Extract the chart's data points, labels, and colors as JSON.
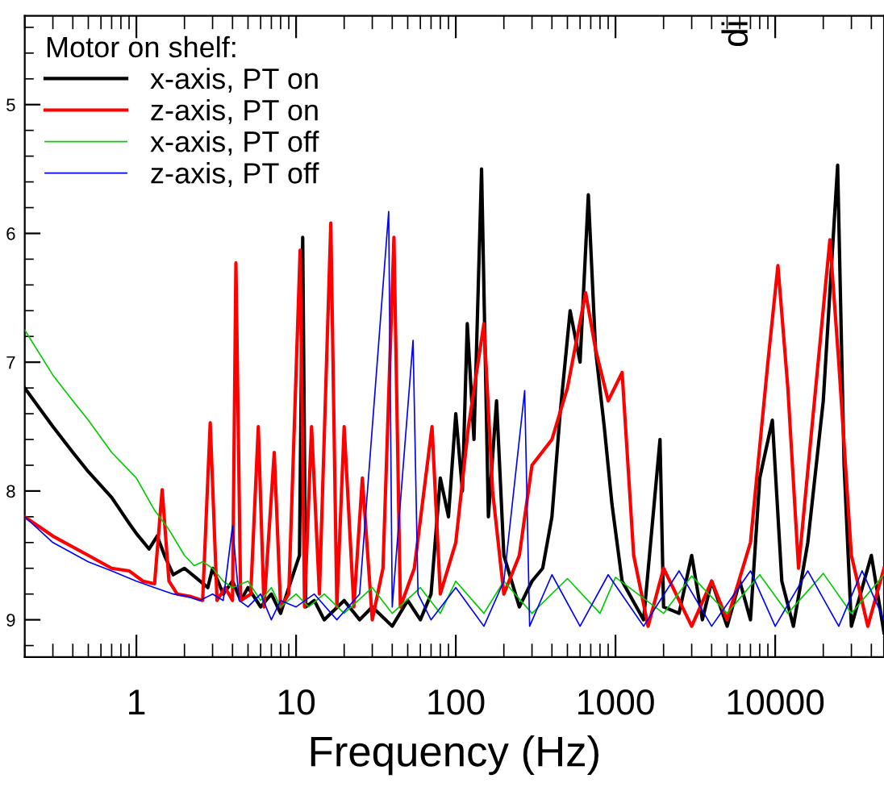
{
  "chart_data": {
    "type": "line",
    "xlabel": "Frequency (Hz)",
    "legend_title": "Motor on shelf:",
    "legend": "top left",
    "log": "x",
    "grid": false,
    "xlim": [
      0.2,
      48000
    ],
    "xticks": [
      1,
      10,
      100,
      1000,
      10000
    ],
    "ylim": [
      9.29,
      4.31
    ],
    "yticks": [
      5,
      6,
      7,
      8,
      9
    ],
    "annotations": [
      "di"
    ],
    "series": [
      {
        "name": "x-axis, PT on",
        "color": "#000000",
        "x": [
          0.2,
          0.3,
          0.4,
          0.5,
          0.7,
          0.9,
          1.0,
          1.2,
          1.35,
          1.5,
          1.7,
          2.0,
          2.4,
          2.8,
          3.0,
          3.5,
          4,
          4.5,
          5,
          6,
          7,
          8,
          9,
          10.5,
          11,
          11.5,
          13,
          15,
          20,
          25,
          30,
          40,
          50,
          60,
          70,
          80,
          90,
          100,
          110,
          118,
          130,
          145,
          160,
          180,
          200,
          250,
          300,
          350,
          400,
          450,
          520,
          600,
          676,
          750,
          850,
          950,
          1100,
          1500,
          1900,
          2000,
          2500,
          3000,
          3500,
          4000,
          5000,
          6000,
          7000,
          8000,
          9600,
          11000,
          13000,
          16000,
          20000,
          24600,
          27000,
          30000,
          40000,
          48000
        ],
        "values": [
          7.2,
          7.5,
          7.7,
          7.85,
          8.05,
          8.25,
          8.33,
          8.45,
          8.35,
          8.5,
          8.65,
          8.6,
          8.68,
          8.75,
          8.6,
          8.8,
          8.7,
          8.85,
          8.75,
          8.9,
          8.8,
          8.95,
          8.75,
          8.5,
          6.03,
          8.9,
          8.85,
          9.0,
          8.85,
          9.0,
          8.9,
          9.05,
          8.85,
          9.0,
          8.8,
          7.9,
          8.2,
          7.4,
          8.0,
          6.7,
          7.6,
          5.5,
          8.2,
          7.3,
          8.5,
          8.9,
          8.7,
          8.6,
          8.2,
          7.4,
          6.6,
          7.0,
          5.7,
          6.9,
          7.5,
          8.1,
          8.7,
          9.0,
          7.6,
          8.9,
          8.95,
          8.5,
          9.0,
          8.7,
          9.05,
          8.7,
          9.0,
          7.9,
          7.45,
          8.7,
          9.05,
          8.4,
          7.3,
          5.47,
          7.8,
          9.05,
          8.5,
          9.1
        ]
      },
      {
        "name": "z-axis, PT on",
        "color": "#ff0000",
        "x": [
          0.2,
          0.3,
          0.5,
          0.7,
          0.9,
          1.1,
          1.3,
          1.45,
          1.6,
          1.8,
          2.2,
          2.6,
          2.9,
          3.2,
          3.6,
          4.0,
          4.2,
          4.5,
          5.2,
          5.8,
          6.3,
          7.3,
          8,
          9,
          10.6,
          11.3,
          12.5,
          14,
          16.5,
          18,
          20,
          23,
          26,
          30,
          35,
          41,
          45,
          55,
          71,
          80,
          100,
          120,
          150,
          170,
          200,
          250,
          300,
          400,
          500,
          650,
          750,
          900,
          1100,
          1300,
          1600,
          2000,
          3000,
          4000,
          5000,
          7000,
          9000,
          10400,
          12000,
          14000,
          17000,
          22000,
          25000,
          30000,
          38000,
          48000
        ],
        "values": [
          8.2,
          8.35,
          8.5,
          8.6,
          8.62,
          8.7,
          8.72,
          7.99,
          8.7,
          8.8,
          8.82,
          8.85,
          7.47,
          8.85,
          8.75,
          8.85,
          6.23,
          8.85,
          8.8,
          7.5,
          8.9,
          7.7,
          8.9,
          8.8,
          6.13,
          8.9,
          7.5,
          8.8,
          5.92,
          8.9,
          7.5,
          8.9,
          7.9,
          9.0,
          8.6,
          6.03,
          8.9,
          8.6,
          7.5,
          8.8,
          8.4,
          7.5,
          6.7,
          8.0,
          8.8,
          8.5,
          7.8,
          7.6,
          7.2,
          6.46,
          6.9,
          7.3,
          7.08,
          8.5,
          9.05,
          8.6,
          9.05,
          8.7,
          9.0,
          8.4,
          7.0,
          6.25,
          7.2,
          8.6,
          7.5,
          6.05,
          7.0,
          8.5,
          9.05,
          8.6
        ]
      },
      {
        "name": "x-axis, PT off",
        "color": "#00cc00",
        "x": [
          0.2,
          0.3,
          0.4,
          0.5,
          0.7,
          1.0,
          1.3,
          1.6,
          2.0,
          2.3,
          2.6,
          3.0,
          3.5,
          4,
          5,
          6,
          7,
          8,
          10,
          12,
          15,
          20,
          30,
          40,
          60,
          80,
          100,
          150,
          200,
          300,
          500,
          800,
          1000,
          2000,
          3000,
          5000,
          8000,
          12000,
          20000,
          30000,
          48000
        ],
        "values": [
          6.75,
          7.1,
          7.3,
          7.45,
          7.7,
          7.9,
          8.15,
          8.3,
          8.5,
          8.58,
          8.55,
          8.6,
          8.7,
          8.75,
          8.7,
          8.85,
          8.75,
          8.9,
          8.8,
          8.9,
          8.8,
          8.95,
          8.75,
          8.95,
          8.75,
          8.95,
          8.7,
          8.95,
          8.7,
          8.95,
          8.68,
          8.95,
          8.67,
          8.95,
          8.66,
          8.95,
          8.65,
          8.95,
          8.64,
          8.95,
          8.65
        ]
      },
      {
        "name": "z-axis, PT off",
        "color": "#0000ff",
        "x": [
          0.2,
          0.3,
          0.5,
          0.7,
          1.0,
          1.3,
          1.7,
          2.1,
          2.5,
          3.0,
          3.5,
          4.0,
          4.4,
          5,
          6,
          7,
          8,
          10,
          13,
          18,
          25,
          38,
          40,
          54,
          58,
          70,
          100,
          150,
          200,
          270,
          290,
          400,
          600,
          900,
          1500,
          2500,
          4000,
          7000,
          10000,
          16000,
          25000,
          35000,
          48000
        ],
        "values": [
          8.2,
          8.4,
          8.55,
          8.62,
          8.7,
          8.75,
          8.8,
          8.82,
          8.85,
          8.8,
          8.85,
          8.27,
          8.85,
          8.9,
          8.8,
          9.0,
          8.85,
          8.9,
          8.8,
          9.0,
          8.8,
          5.83,
          8.9,
          6.83,
          8.8,
          9.0,
          8.75,
          9.05,
          8.7,
          7.22,
          9.05,
          8.65,
          9.05,
          8.65,
          9.05,
          8.62,
          9.05,
          8.62,
          9.05,
          8.62,
          9.05,
          8.62,
          9.0
        ]
      }
    ]
  }
}
